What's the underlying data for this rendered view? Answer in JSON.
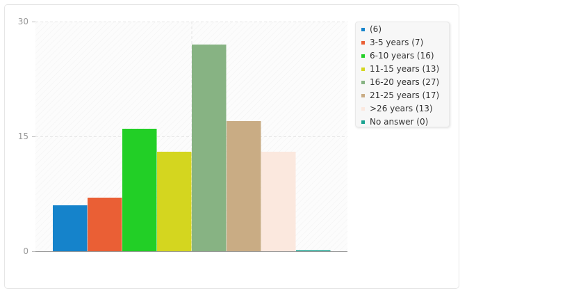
{
  "chart_data": {
    "type": "bar",
    "ylim": [
      0,
      30
    ],
    "yticks": [
      0,
      15,
      30
    ],
    "grid": true,
    "legend_position": "right",
    "categories": [
      "",
      "3-5 years",
      "6-10 years",
      "11-15 years",
      "16-20 years",
      "21-25 years",
      ">26 years",
      "No answer"
    ],
    "values": [
      6,
      7,
      16,
      13,
      27,
      17,
      13,
      0
    ],
    "colors": [
      "#1583cb",
      "#ea5f35",
      "#22cf26",
      "#d4d61f",
      "#87b383",
      "#c9ac84",
      "#fbe8de",
      "#1aa391"
    ],
    "legend": [
      {
        "label": " (6)"
      },
      {
        "label": "3-5 years (7)"
      },
      {
        "label": "6-10 years (16)"
      },
      {
        "label": "11-15 years (13)"
      },
      {
        "label": "16-20 years (27)"
      },
      {
        "label": "21-25 years (17)"
      },
      {
        "label": ">26 years (13)"
      },
      {
        "label": "No answer (0)"
      }
    ]
  }
}
